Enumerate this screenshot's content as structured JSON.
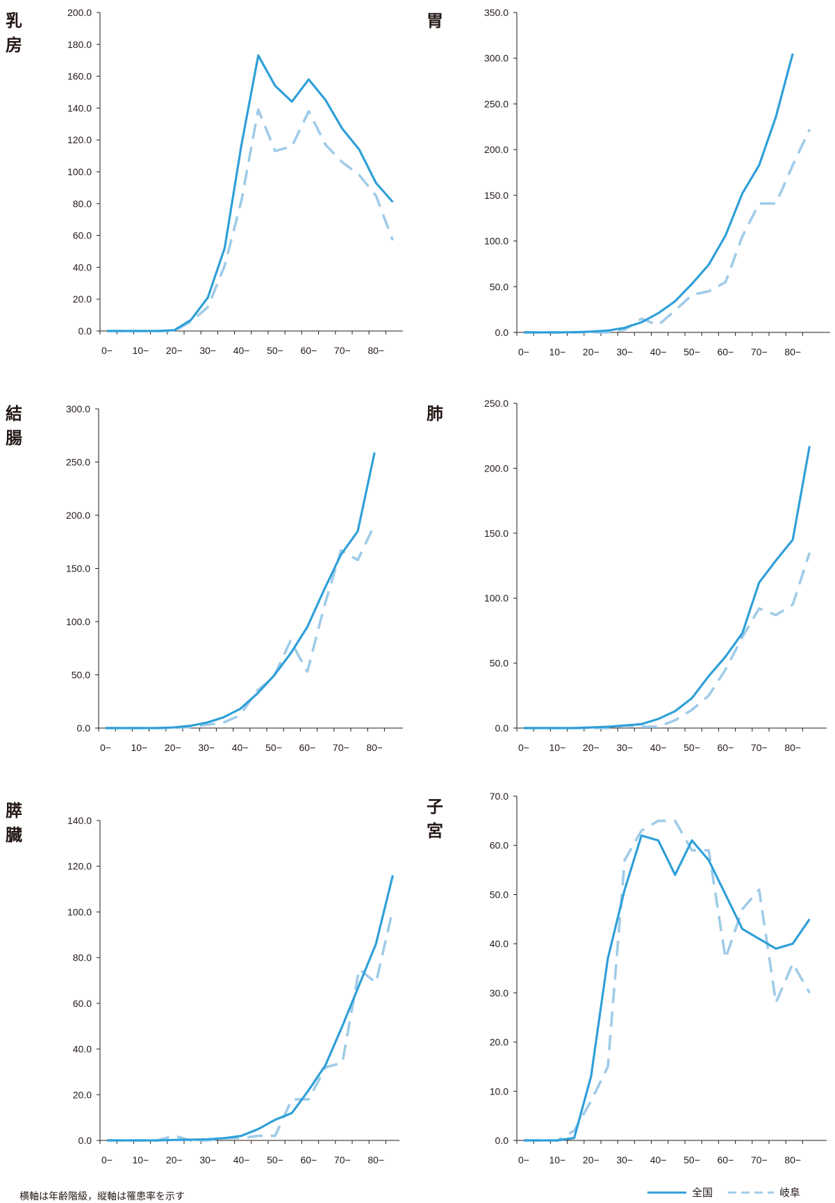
{
  "colors": {
    "national": "#2e9fd8",
    "gifu": "#9fcbe8",
    "axis": "#231815"
  },
  "legend": {
    "national": "全国",
    "gifu": "岐阜"
  },
  "footnote": "横軸は年齢階級，縦軸は罹患率を示す",
  "chart_data": [
    {
      "type": "line",
      "title": "乳房",
      "categories": [
        "0-",
        "5-",
        "10-",
        "15-",
        "20-",
        "25-",
        "30-",
        "35-",
        "40-",
        "45-",
        "50-",
        "55-",
        "60-",
        "65-",
        "70-",
        "75-",
        "80-",
        "85-"
      ],
      "tick_labels": [
        "0−",
        "10−",
        "20−",
        "30−",
        "40−",
        "50−",
        "60−",
        "70−",
        "80−"
      ],
      "ylim": [
        0,
        200
      ],
      "yticks": [
        "0.0",
        "20.0",
        "40.0",
        "60.0",
        "80.0",
        "100.0",
        "120.0",
        "140.0",
        "160.0",
        "180.0",
        "200.0"
      ],
      "series": [
        {
          "name": "全国",
          "values": [
            0,
            0,
            0,
            0,
            0.5,
            7,
            21,
            52,
            117,
            173,
            154,
            144,
            158,
            145,
            127,
            114,
            93,
            81
          ]
        },
        {
          "name": "岐阜",
          "values": [
            0,
            0,
            0,
            0,
            0,
            6,
            15,
            41,
            82,
            139,
            113,
            116,
            138,
            117,
            106,
            98,
            85,
            57
          ]
        }
      ]
    },
    {
      "type": "line",
      "title": "胃",
      "categories": [
        "0-",
        "5-",
        "10-",
        "15-",
        "20-",
        "25-",
        "30-",
        "35-",
        "40-",
        "45-",
        "50-",
        "55-",
        "60-",
        "65-",
        "70-",
        "75-",
        "80-",
        "85-"
      ],
      "tick_labels": [
        "0−",
        "10−",
        "20−",
        "30−",
        "40−",
        "50−",
        "60−",
        "70−",
        "80−"
      ],
      "ylim": [
        0,
        350
      ],
      "yticks": [
        "0.0",
        "50.0",
        "100.0",
        "150.0",
        "200.0",
        "250.0",
        "300.0",
        "350.0"
      ],
      "series": [
        {
          "name": "全国",
          "values": [
            0,
            0,
            0,
            0.2,
            0.8,
            2,
            5,
            11,
            21,
            34,
            53,
            74,
            106,
            152,
            183,
            236,
            305,
            null
          ]
        },
        {
          "name": "岐阜",
          "values": [
            0,
            0,
            0,
            0,
            0,
            0,
            3,
            15,
            8,
            24,
            41,
            45,
            55,
            105,
            141,
            141,
            183,
            222
          ]
        }
      ]
    },
    {
      "type": "line",
      "title": "結腸",
      "categories": [
        "0-",
        "5-",
        "10-",
        "15-",
        "20-",
        "25-",
        "30-",
        "35-",
        "40-",
        "45-",
        "50-",
        "55-",
        "60-",
        "65-",
        "70-",
        "75-",
        "80-",
        "85-"
      ],
      "tick_labels": [
        "0−",
        "10−",
        "20−",
        "30−",
        "40−",
        "50−",
        "60−",
        "70−",
        "80−"
      ],
      "ylim": [
        0,
        300
      ],
      "yticks": [
        "0.0",
        "50.0",
        "100.0",
        "150.0",
        "200.0",
        "250.0",
        "300.0"
      ],
      "series": [
        {
          "name": "全国",
          "values": [
            0,
            0,
            0,
            0,
            0.5,
            2,
            5,
            10,
            18,
            32,
            49,
            70,
            95,
            130,
            163,
            185,
            259,
            null
          ]
        },
        {
          "name": "岐阜",
          "values": [
            0,
            0,
            0,
            0,
            0,
            1,
            3,
            5,
            12,
            35,
            48,
            82,
            53,
            114,
            167,
            158,
            191,
            null
          ]
        }
      ]
    },
    {
      "type": "line",
      "title": "肺",
      "categories": [
        "0-",
        "5-",
        "10-",
        "15-",
        "20-",
        "25-",
        "30-",
        "35-",
        "40-",
        "45-",
        "50-",
        "55-",
        "60-",
        "65-",
        "70-",
        "75-",
        "80-",
        "85-"
      ],
      "tick_labels": [
        "0−",
        "10−",
        "20−",
        "30−",
        "40−",
        "50−",
        "60−",
        "70−",
        "80−"
      ],
      "ylim": [
        0,
        250
      ],
      "yticks": [
        "0.0",
        "50.0",
        "100.0",
        "150.0",
        "200.0",
        "250.0"
      ],
      "series": [
        {
          "name": "全国",
          "values": [
            0,
            0,
            0,
            0,
            0.5,
            1,
            2,
            3,
            7,
            13,
            23,
            40,
            55,
            73,
            112,
            129,
            145,
            217
          ]
        },
        {
          "name": "岐阜",
          "values": [
            0,
            0,
            0,
            0,
            0,
            0,
            2,
            1,
            1,
            6,
            14,
            25,
            45,
            70,
            92,
            87,
            95,
            135
          ]
        }
      ]
    },
    {
      "type": "line",
      "title": "膵臓",
      "categories": [
        "0-",
        "5-",
        "10-",
        "15-",
        "20-",
        "25-",
        "30-",
        "35-",
        "40-",
        "45-",
        "50-",
        "55-",
        "60-",
        "65-",
        "70-",
        "75-",
        "80-",
        "85-"
      ],
      "tick_labels": [
        "0−",
        "10−",
        "20−",
        "30−",
        "40−",
        "50−",
        "60−",
        "70−",
        "80−"
      ],
      "ylim": [
        0,
        140
      ],
      "yticks": [
        "0.0",
        "20.0",
        "40.0",
        "60.0",
        "80.0",
        "100.0",
        "120.0",
        "140.0"
      ],
      "series": [
        {
          "name": "全国",
          "values": [
            0,
            0,
            0,
            0,
            0.2,
            0.3,
            0.5,
            1,
            2,
            5,
            9,
            12,
            22,
            33,
            50,
            68,
            86,
            116
          ]
        },
        {
          "name": "岐阜",
          "values": [
            0,
            0,
            0,
            0,
            2,
            0,
            0,
            1,
            1,
            2,
            2,
            18,
            18,
            32,
            34,
            75,
            69,
            101
          ]
        }
      ]
    },
    {
      "type": "line",
      "title": "子宮",
      "categories": [
        "0-",
        "5-",
        "10-",
        "15-",
        "20-",
        "25-",
        "30-",
        "35-",
        "40-",
        "45-",
        "50-",
        "55-",
        "60-",
        "65-",
        "70-",
        "75-",
        "80-",
        "85-"
      ],
      "tick_labels": [
        "0−",
        "10−",
        "20−",
        "30−",
        "40−",
        "50−",
        "60−",
        "70−",
        "80−"
      ],
      "ylim": [
        0,
        70
      ],
      "yticks": [
        "0.0",
        "10.0",
        "20.0",
        "30.0",
        "40.0",
        "50.0",
        "60.0",
        "70.0"
      ],
      "series": [
        {
          "name": "全国",
          "values": [
            0,
            0,
            0,
            0.5,
            13,
            37,
            51,
            62,
            61,
            54,
            61,
            57,
            50,
            43,
            41,
            39,
            40,
            45
          ]
        },
        {
          "name": "岐阜",
          "values": [
            0,
            0,
            0,
            2,
            8,
            15,
            57,
            63,
            65,
            65,
            59,
            59,
            37,
            47,
            51,
            28,
            36,
            30
          ]
        }
      ]
    }
  ]
}
